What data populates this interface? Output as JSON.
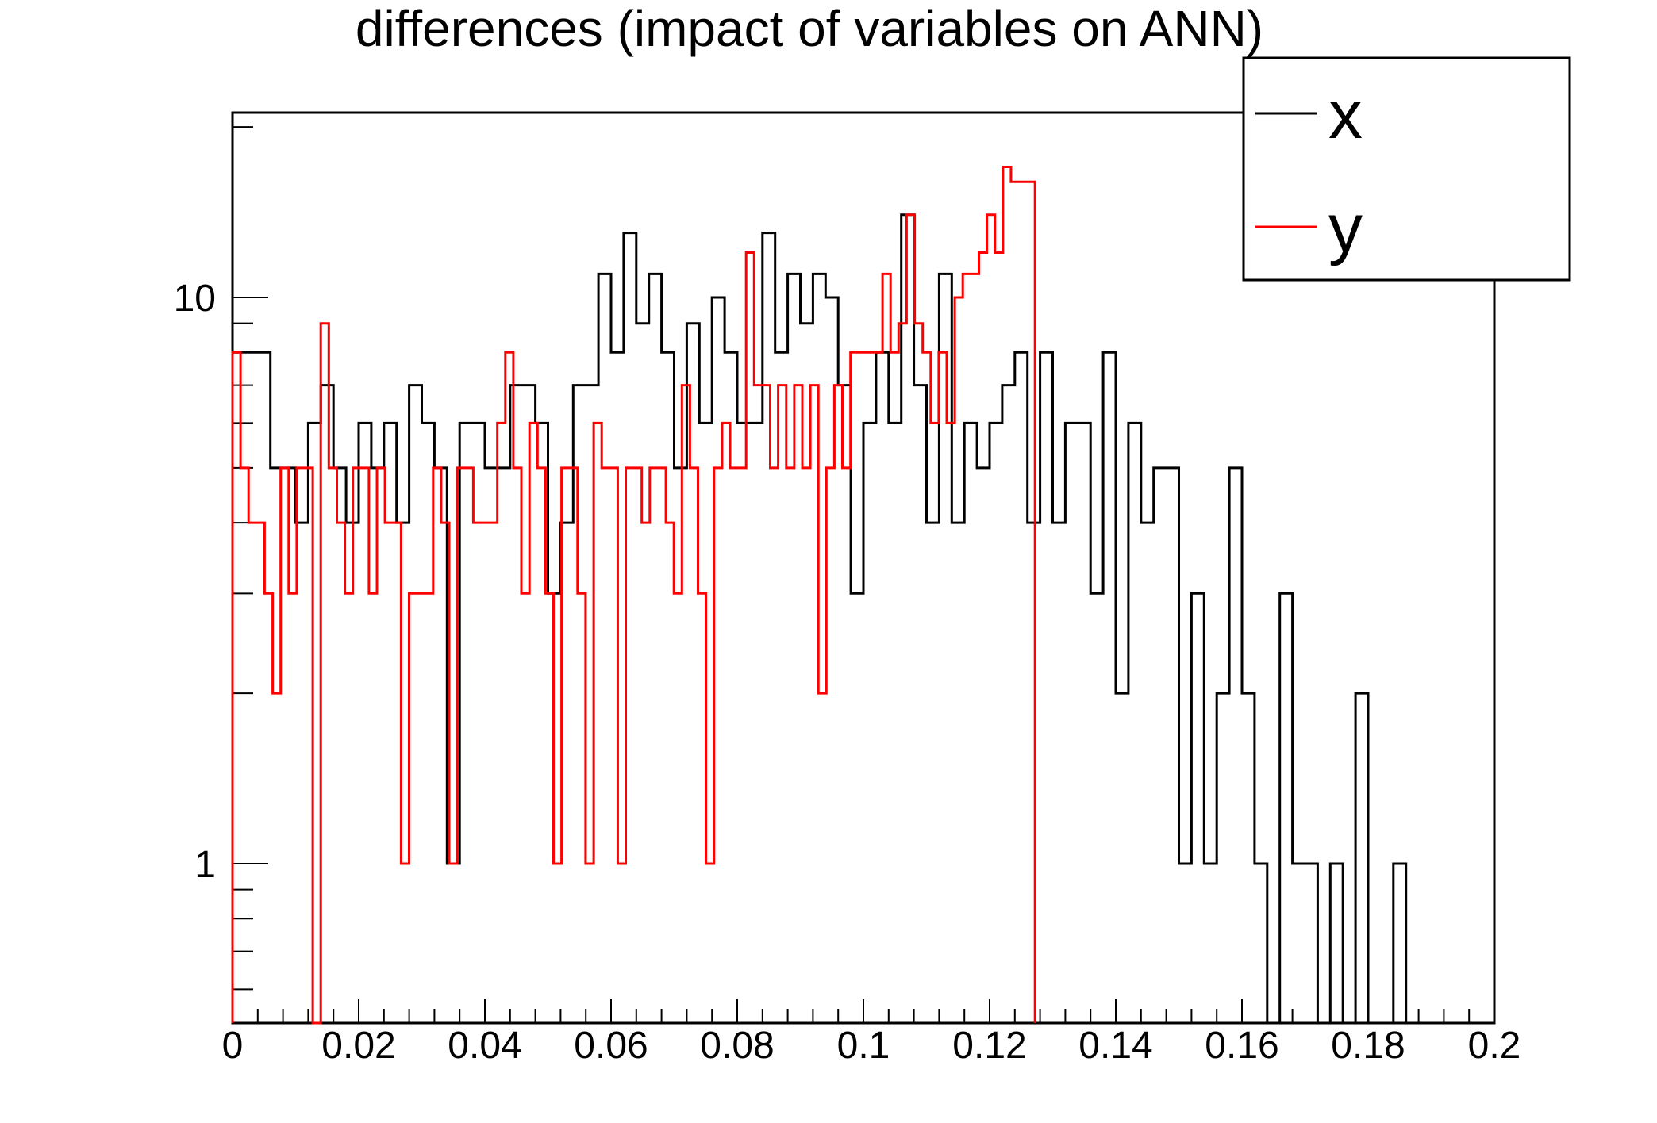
{
  "title": "differences (impact of variables on ANN)",
  "colors": {
    "background": "#ffffff",
    "frame": "#000000",
    "series_x": "#000000",
    "series_y": "#ff0000"
  },
  "legend": {
    "position": "top-right",
    "entries": [
      {
        "label": "x",
        "color": "#000000"
      },
      {
        "label": "y",
        "color": "#ff0000"
      }
    ]
  },
  "chart_data": {
    "type": "step-histogram",
    "title": "differences (impact of variables on ANN)",
    "xlabel": "",
    "ylabel": "",
    "grid": false,
    "legend_position": "top-right",
    "x_axis": {
      "min": 0,
      "max": 0.2,
      "major_tick_step": 0.02,
      "minor_tick_step": 0.004,
      "tick_labels": [
        "0",
        "0.02",
        "0.04",
        "0.06",
        "0.08",
        "0.1",
        "0.12",
        "0.14",
        "0.16",
        "0.18",
        "0.2"
      ]
    },
    "y_axis": {
      "scale": "log",
      "min": 0.52,
      "max": 21.2,
      "labeled_ticks": [
        1,
        10
      ],
      "tick_labels": [
        "1",
        "10"
      ],
      "minor_ticks": [
        0.6,
        0.7,
        0.8,
        0.9,
        2,
        3,
        4,
        5,
        6,
        7,
        8,
        9,
        20
      ]
    },
    "series": [
      {
        "name": "x",
        "color": "#000000",
        "bin_start": 0,
        "bin_width": 0.002,
        "values": [
          8,
          8,
          8,
          5,
          5,
          4,
          6,
          7,
          5,
          4,
          6,
          5,
          6,
          4,
          7,
          6,
          5,
          1,
          6,
          6,
          5,
          5,
          7,
          7,
          6,
          3,
          4,
          7,
          7,
          11,
          8,
          13,
          9,
          11,
          8,
          5,
          9,
          6,
          10,
          8,
          6,
          6,
          13,
          8,
          11,
          9,
          11,
          10,
          7,
          3,
          6,
          8,
          6,
          14,
          7,
          4,
          11,
          4,
          6,
          5,
          6,
          7,
          8,
          4,
          8,
          4,
          6,
          6,
          3,
          8,
          2,
          6,
          4,
          5,
          5,
          1,
          3,
          1,
          2,
          5,
          2,
          1,
          0,
          3,
          1,
          1,
          0,
          1,
          0,
          2,
          0,
          0,
          1,
          0,
          0,
          0,
          0,
          0,
          0,
          0
        ]
      },
      {
        "name": "y",
        "color": "#ff0000",
        "bin_start": 0,
        "bin_width": 0.001272,
        "values": [
          8,
          5,
          4,
          4,
          3,
          2,
          5,
          3,
          5,
          5,
          0,
          9,
          5,
          4,
          3,
          5,
          5,
          3,
          5,
          4,
          4,
          1,
          3,
          3,
          3,
          5,
          4,
          1,
          5,
          5,
          4,
          4,
          4,
          6,
          8,
          5,
          3,
          6,
          5,
          3,
          1,
          5,
          5,
          3,
          1,
          6,
          5,
          5,
          1,
          5,
          5,
          4,
          5,
          5,
          4,
          3,
          7,
          5,
          3,
          1,
          5,
          6,
          5,
          5,
          12,
          7,
          7,
          5,
          7,
          5,
          7,
          5,
          7,
          2,
          5,
          7,
          5,
          8,
          8,
          8,
          8,
          11,
          8,
          9,
          14,
          9,
          8,
          6,
          8,
          6,
          10,
          11,
          11,
          12,
          14,
          12,
          17,
          16,
          16,
          16
        ]
      }
    ]
  }
}
